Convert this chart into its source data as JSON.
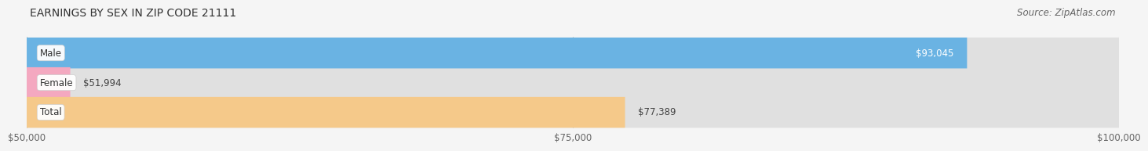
{
  "title": "EARNINGS BY SEX IN ZIP CODE 21111",
  "source": "Source: ZipAtlas.com",
  "categories": [
    "Male",
    "Female",
    "Total"
  ],
  "values": [
    93045,
    51994,
    77389
  ],
  "value_labels": [
    "$93,045",
    "$51,994",
    "$77,389"
  ],
  "bar_colors": [
    "#6ab3e3",
    "#f4a8c0",
    "#f5c98a"
  ],
  "bg_bar_color": "#e0e0e0",
  "xlim_min": 50000,
  "xlim_max": 100000,
  "xticks": [
    50000,
    75000,
    100000
  ],
  "xtick_labels": [
    "$50,000",
    "$75,000",
    "$100,000"
  ],
  "background_color": "#f5f5f5",
  "title_fontsize": 10,
  "source_fontsize": 8.5,
  "tick_fontsize": 8.5,
  "bar_label_fontsize": 8.5,
  "category_fontsize": 8.5,
  "bar_height": 0.52,
  "label_text_colors": [
    "white",
    "#444444",
    "#444444"
  ],
  "label_inside": [
    true,
    false,
    false
  ]
}
